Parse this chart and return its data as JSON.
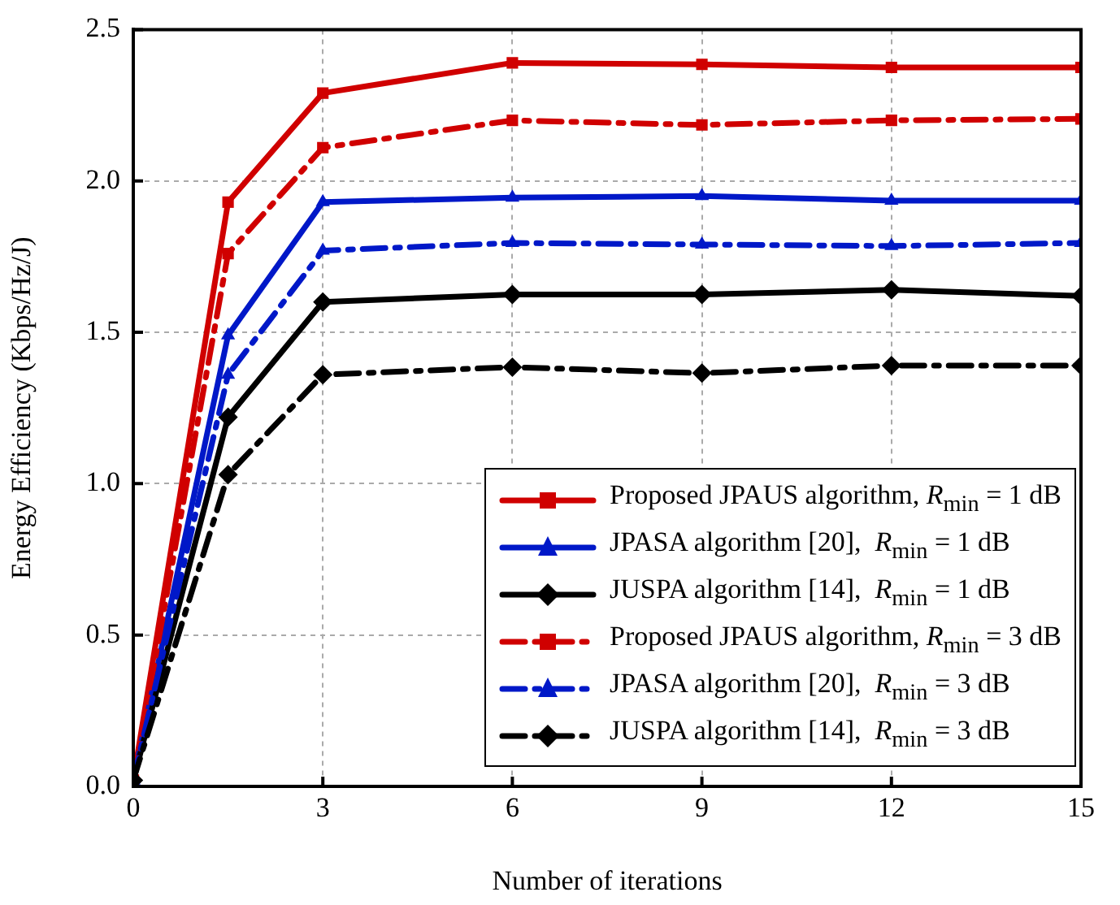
{
  "chart_data": {
    "type": "line",
    "xlabel": "Number of iterations",
    "ylabel": "Energy Efficiency (Kbps/Hz/J)",
    "x": [
      0,
      1.5,
      3,
      6,
      9,
      12,
      15
    ],
    "xlim": [
      0,
      15
    ],
    "xticks": [
      0,
      3,
      6,
      9,
      12,
      15
    ],
    "ylim": [
      0,
      2.5
    ],
    "yticks": [
      {
        "value": 0,
        "label": "0.0"
      },
      0.5,
      {
        "value": 1,
        "label": "1.0"
      },
      1.5,
      {
        "value": 2,
        "label": "2.0"
      },
      2.5
    ],
    "grid": true,
    "legend": "bottom right",
    "series": [
      {
        "name": "Proposed JPAUS algorithm, R$_{min}$ = 1 dB",
        "color": "#d00000",
        "marker": "square",
        "line_style": "solid",
        "values": [
          0.02,
          1.93,
          2.29,
          2.39,
          2.385,
          2.375,
          2.375
        ]
      },
      {
        "name": "JPASA algorithm [20],  R$_{min}$ = 1 dB",
        "color": "#0018c8",
        "marker": "triangle",
        "line_style": "solid",
        "values": [
          0.02,
          1.49,
          1.93,
          1.945,
          1.95,
          1.935,
          1.935
        ]
      },
      {
        "name": "JUSPA algorithm [14],  R$_{min}$ = 1 dB",
        "color": "#000000",
        "marker": "diamond",
        "line_style": "solid",
        "values": [
          0.02,
          1.22,
          1.6,
          1.625,
          1.625,
          1.64,
          1.62
        ]
      },
      {
        "name": "Proposed JPAUS algorithm, R$_{min}$ = 3 dB",
        "color": "#d00000",
        "marker": "square",
        "line_style": "dashed",
        "values": [
          0.02,
          1.76,
          2.11,
          2.2,
          2.185,
          2.2,
          2.205
        ]
      },
      {
        "name": "JPASA algorithm [20],  R$_{min}$ = 3 dB",
        "color": "#0018c8",
        "marker": "triangle",
        "line_style": "dashed",
        "values": [
          0.02,
          1.36,
          1.77,
          1.795,
          1.79,
          1.785,
          1.795
        ]
      },
      {
        "name": "JUSPA algorithm [14],  R$_{min}$ = 3 dB",
        "color": "#000000",
        "marker": "diamond",
        "line_style": "dashed",
        "values": [
          0.02,
          1.03,
          1.36,
          1.385,
          1.365,
          1.39,
          1.39
        ]
      }
    ]
  }
}
